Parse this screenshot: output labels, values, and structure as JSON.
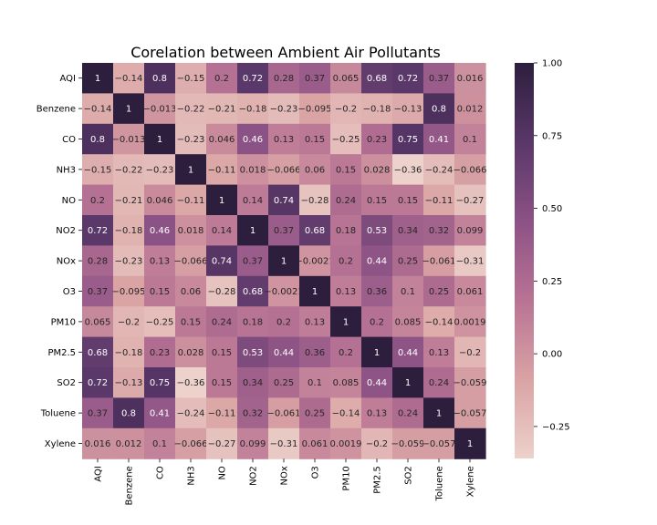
{
  "chart_data": {
    "type": "heatmap",
    "title": "Corelation between Ambient Air Pollutants",
    "labels": [
      "AQI",
      "Benzene",
      "CO",
      "NH3",
      "NO",
      "NO2",
      "NOx",
      "O3",
      "PM10",
      "PM2.5",
      "SO2",
      "Toluene",
      "Xylene"
    ],
    "matrix": [
      [
        "1",
        "-0.14",
        "0.8",
        "-0.15",
        "0.2",
        "0.72",
        "0.28",
        "0.37",
        "0.065",
        "0.68",
        "0.72",
        "0.37",
        "0.016"
      ],
      [
        "-0.14",
        "1",
        "-0.013",
        "-0.22",
        "-0.21",
        "-0.18",
        "-0.23",
        "-0.095",
        "-0.2",
        "-0.18",
        "-0.13",
        "0.8",
        "0.012"
      ],
      [
        "0.8",
        "-0.013",
        "1",
        "-0.23",
        "0.046",
        "0.46",
        "0.13",
        "0.15",
        "-0.25",
        "0.23",
        "0.75",
        "0.41",
        "0.1"
      ],
      [
        "-0.15",
        "-0.22",
        "-0.23",
        "1",
        "-0.11",
        "0.018",
        "-0.066",
        "0.06",
        "0.15",
        "0.028",
        "-0.36",
        "-0.24",
        "-0.066"
      ],
      [
        "0.2",
        "-0.21",
        "0.046",
        "-0.11",
        "1",
        "0.14",
        "0.74",
        "-0.28",
        "0.24",
        "0.15",
        "0.15",
        "-0.11",
        "-0.27"
      ],
      [
        "0.72",
        "-0.18",
        "0.46",
        "0.018",
        "0.14",
        "1",
        "0.37",
        "0.68",
        "0.18",
        "0.53",
        "0.34",
        "0.32",
        "0.099"
      ],
      [
        "0.28",
        "-0.23",
        "0.13",
        "-0.066",
        "0.74",
        "0.37",
        "1",
        "-0.0021",
        "0.2",
        "0.44",
        "0.25",
        "-0.061",
        "-0.31"
      ],
      [
        "0.37",
        "-0.095",
        "0.15",
        "0.06",
        "-0.28",
        "0.68",
        "-0.0021",
        "1",
        "0.13",
        "0.36",
        "0.1",
        "0.25",
        "0.061"
      ],
      [
        "0.065",
        "-0.2",
        "-0.25",
        "0.15",
        "0.24",
        "0.18",
        "0.2",
        "0.13",
        "1",
        "0.2",
        "0.085",
        "-0.14",
        "0.0019"
      ],
      [
        "0.68",
        "-0.18",
        "0.23",
        "0.028",
        "0.15",
        "0.53",
        "0.44",
        "0.36",
        "0.2",
        "1",
        "0.44",
        "0.13",
        "-0.2"
      ],
      [
        "0.72",
        "-0.13",
        "0.75",
        "-0.36",
        "0.15",
        "0.34",
        "0.25",
        "0.1",
        "0.085",
        "0.44",
        "1",
        "0.24",
        "-0.059"
      ],
      [
        "0.37",
        "0.8",
        "0.41",
        "-0.24",
        "-0.11",
        "0.32",
        "-0.061",
        "0.25",
        "-0.14",
        "0.13",
        "0.24",
        "1",
        "-0.057"
      ],
      [
        "0.016",
        "0.012",
        "0.1",
        "-0.066",
        "-0.27",
        "0.099",
        "-0.31",
        "0.061",
        "0.0019",
        "-0.2",
        "-0.059",
        "-0.057",
        "1"
      ]
    ],
    "vmin": -0.36,
    "vmax": 1.0,
    "colorbar": {
      "ticks": [
        -0.25,
        0.0,
        0.25,
        0.5,
        0.75,
        1.0
      ],
      "tick_labels": [
        "−0.25",
        "0.00",
        "0.25",
        "0.50",
        "0.75",
        "1.00"
      ]
    },
    "colormap": [
      "#edd1cb",
      "#d9a3a4",
      "#b87394",
      "#8c5285",
      "#593768",
      "#2d1e3e"
    ]
  }
}
